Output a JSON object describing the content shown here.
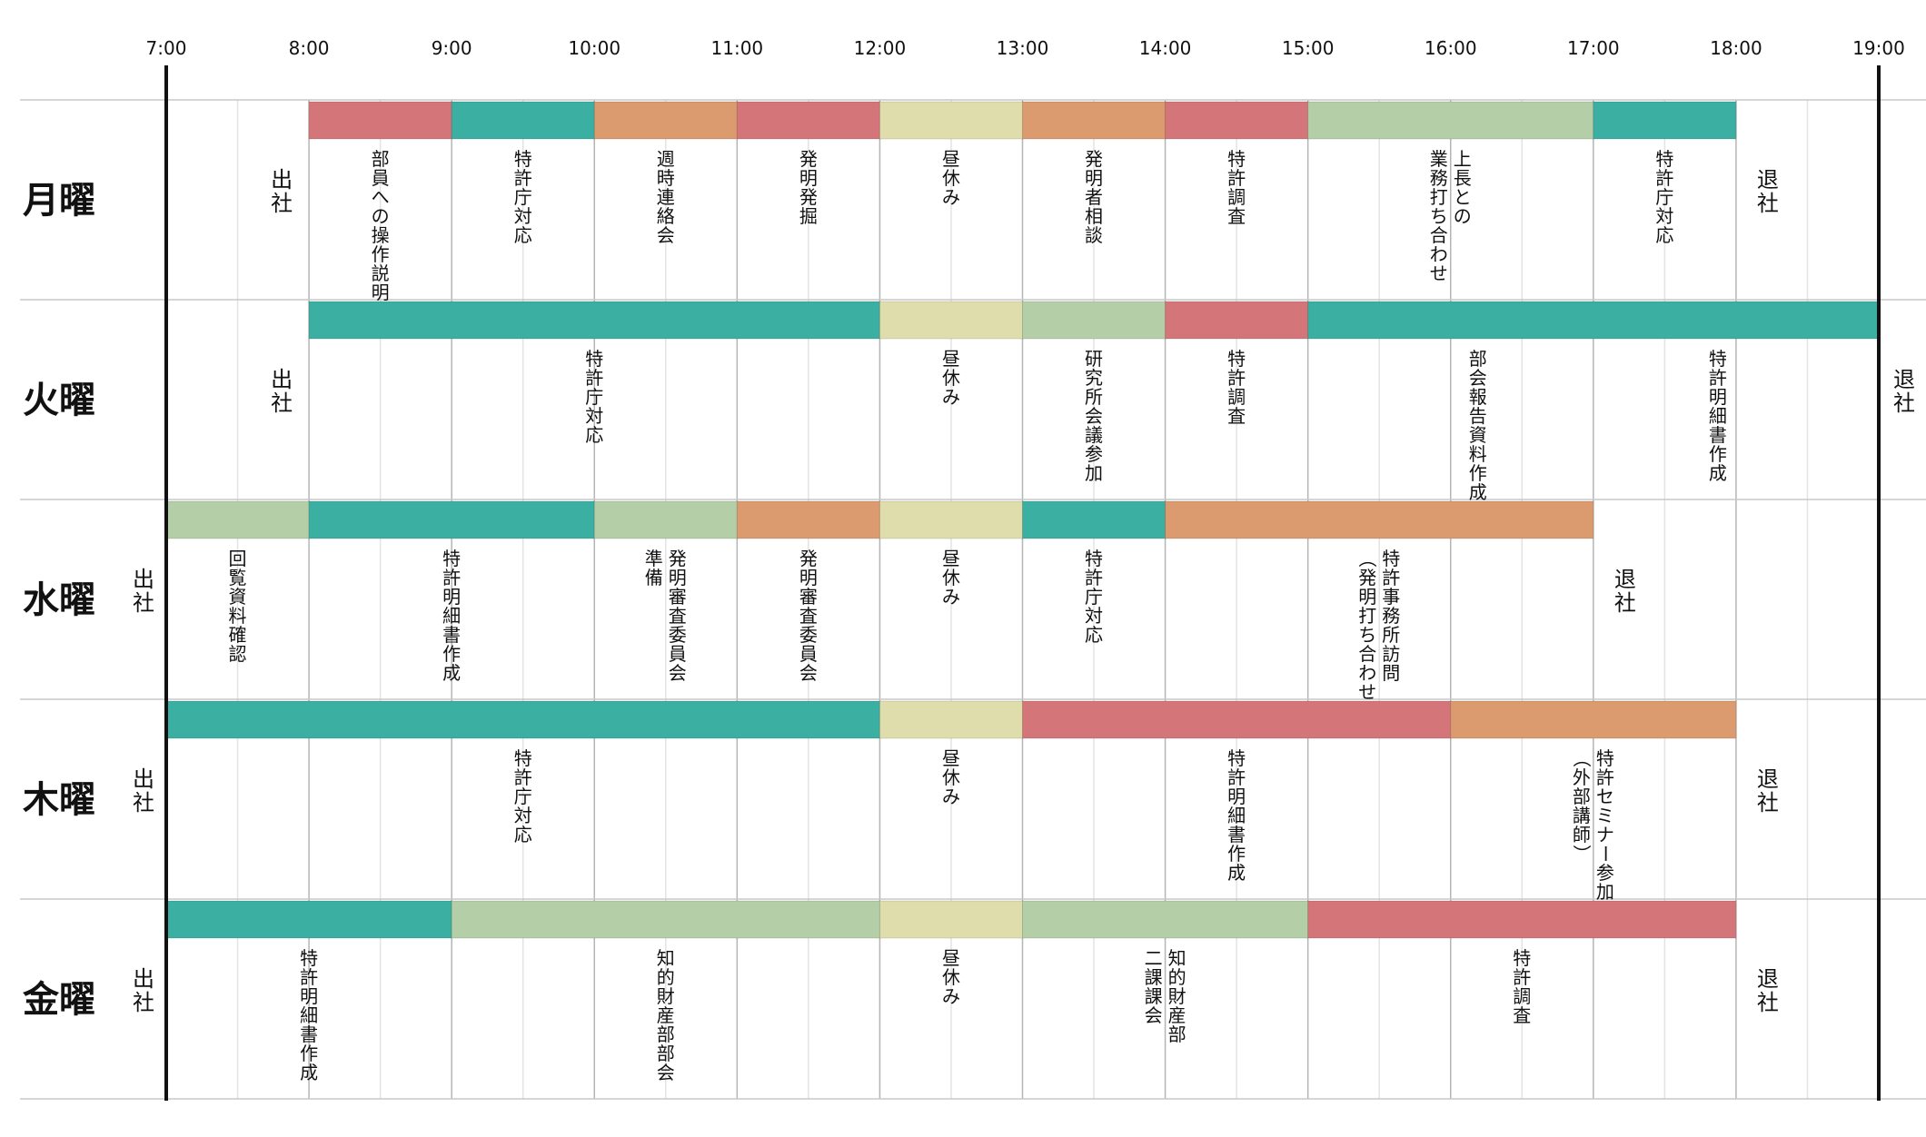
{
  "colors": {
    "red": "#d4757a",
    "teal": "#3aafa2",
    "orange": "#dc9a6f",
    "yellow": "#dfddab",
    "green": "#b4cea8"
  },
  "chart_data": {
    "type": "timeline",
    "x_ticks": [
      "7:00",
      "8:00",
      "9:00",
      "10:00",
      "11:00",
      "12:00",
      "13:00",
      "14:00",
      "15:00",
      "16:00",
      "17:00",
      "18:00",
      "19:00"
    ],
    "xlim": [
      7,
      19
    ],
    "rows": [
      {
        "day": "月曜",
        "arrive": {
          "label": "出社",
          "time": 8
        },
        "leave": {
          "label": "退社",
          "time": 18
        },
        "activities": [
          {
            "start": 8,
            "end": 9,
            "color": "red",
            "label": [
              "部員への操作説明"
            ]
          },
          {
            "start": 9,
            "end": 10,
            "color": "teal",
            "label": [
              "特許庁対応"
            ]
          },
          {
            "start": 10,
            "end": 11,
            "color": "orange",
            "label": [
              "週時連絡会"
            ]
          },
          {
            "start": 11,
            "end": 12,
            "color": "red",
            "label": [
              "発明発掘"
            ]
          },
          {
            "start": 12,
            "end": 13,
            "color": "yellow",
            "label": [
              "昼休み"
            ]
          },
          {
            "start": 13,
            "end": 14,
            "color": "orange",
            "label": [
              "発明者相談"
            ]
          },
          {
            "start": 14,
            "end": 15,
            "color": "red",
            "label": [
              "特許調査"
            ]
          },
          {
            "start": 15,
            "end": 17,
            "color": "green",
            "label": [
              "上長との",
              "業務打ち合わせ"
            ]
          },
          {
            "start": 17,
            "end": 18,
            "color": "teal",
            "label": [
              "特許庁対応"
            ]
          }
        ]
      },
      {
        "day": "火曜",
        "arrive": {
          "label": "出社",
          "time": 8
        },
        "leave": {
          "label": "退社",
          "time": 19
        },
        "activities": [
          {
            "start": 8,
            "end": 12,
            "color": "teal",
            "label": [
              "特許庁対応"
            ]
          },
          {
            "start": 12,
            "end": 13,
            "color": "yellow",
            "label": [
              "昼休み"
            ]
          },
          {
            "start": 13,
            "end": 14,
            "color": "green",
            "label": [
              "研究所会議参加"
            ]
          },
          {
            "start": 14,
            "end": 15,
            "color": "red",
            "label": [
              "特許調査"
            ]
          },
          {
            "start": 15,
            "end": 19,
            "color": "teal",
            "label": [
              "部会報告資料作成",
              "特許明細書作成"
            ]
          }
        ]
      },
      {
        "day": "水曜",
        "arrive": {
          "label": "出社",
          "time": 7
        },
        "leave": {
          "label": "退社",
          "time": 17
        },
        "activities": [
          {
            "start": 7,
            "end": 8,
            "color": "green",
            "label": [
              "回覧資料確認"
            ]
          },
          {
            "start": 8,
            "end": 10,
            "color": "teal",
            "label": [
              "特許明細書作成"
            ]
          },
          {
            "start": 10,
            "end": 11,
            "color": "green",
            "label": [
              "発明審査委員会",
              "準備"
            ]
          },
          {
            "start": 11,
            "end": 12,
            "color": "orange",
            "label": [
              "発明審査委員会"
            ]
          },
          {
            "start": 12,
            "end": 13,
            "color": "yellow",
            "label": [
              "昼休み"
            ]
          },
          {
            "start": 13,
            "end": 14,
            "color": "teal",
            "label": [
              "特許庁対応"
            ]
          },
          {
            "start": 14,
            "end": 17,
            "color": "orange",
            "label": [
              "特許事務所訪問",
              "（発明打ち合わせ）"
            ]
          }
        ]
      },
      {
        "day": "木曜",
        "arrive": {
          "label": "出社",
          "time": 7
        },
        "leave": {
          "label": "退社",
          "time": 18
        },
        "activities": [
          {
            "start": 7,
            "end": 12,
            "color": "teal",
            "label": [
              "特許庁対応"
            ]
          },
          {
            "start": 12,
            "end": 13,
            "color": "yellow",
            "label": [
              "昼休み"
            ]
          },
          {
            "start": 13,
            "end": 16,
            "color": "red",
            "label": [
              "特許明細書作成"
            ]
          },
          {
            "start": 16,
            "end": 18,
            "color": "orange",
            "label": [
              "特許セミナー参加",
              "（外部講師）"
            ]
          }
        ]
      },
      {
        "day": "金曜",
        "arrive": {
          "label": "出社",
          "time": 7
        },
        "leave": {
          "label": "退社",
          "time": 18
        },
        "activities": [
          {
            "start": 7,
            "end": 9,
            "color": "teal",
            "label": [
              "特許明細書作成"
            ]
          },
          {
            "start": 9,
            "end": 12,
            "color": "green",
            "label": [
              "知的財産部部会"
            ]
          },
          {
            "start": 12,
            "end": 13,
            "color": "yellow",
            "label": [
              "昼休み"
            ]
          },
          {
            "start": 13,
            "end": 15,
            "color": "green",
            "label": [
              "知的財産部",
              "二課課会"
            ]
          },
          {
            "start": 15,
            "end": 18,
            "color": "red",
            "label": [
              "特許調査"
            ]
          }
        ]
      }
    ]
  }
}
